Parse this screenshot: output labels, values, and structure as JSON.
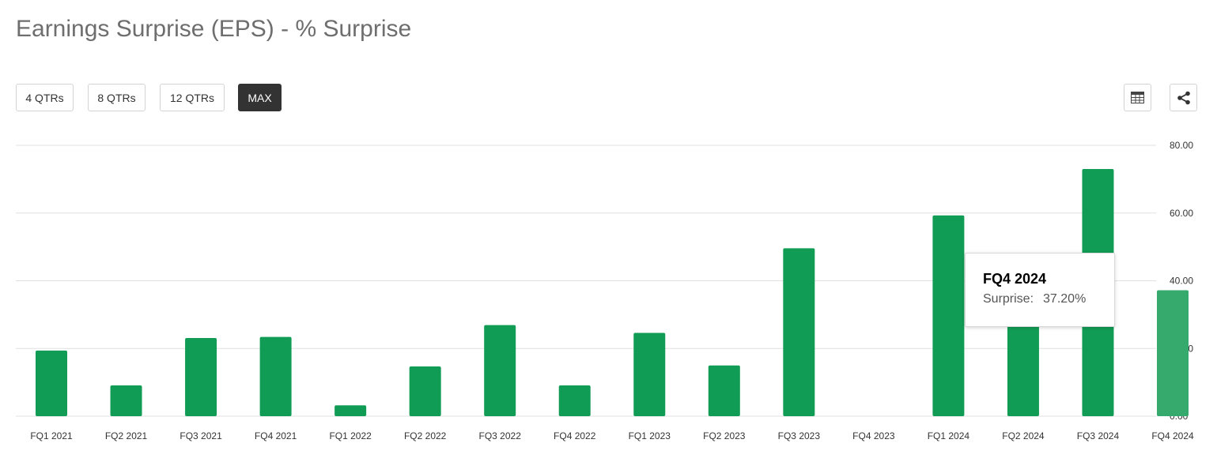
{
  "header": {
    "title": "Earnings Surprise (EPS) - % Surprise"
  },
  "range_buttons": [
    {
      "label": "4 QTRs",
      "active": false
    },
    {
      "label": "8 QTRs",
      "active": false
    },
    {
      "label": "12 QTRs",
      "active": false
    },
    {
      "label": "MAX",
      "active": true
    }
  ],
  "toolbar": {
    "table_icon": "table-icon",
    "share_icon": "share-icon"
  },
  "colors": {
    "bar": "#119c55",
    "bar_hover": "#36a96c",
    "grid": "#e0e0e0",
    "active_button": "#333333"
  },
  "chart_data": {
    "type": "bar",
    "categories": [
      "FQ1 2021",
      "FQ2 2021",
      "FQ3 2021",
      "FQ4 2021",
      "FQ1 2022",
      "FQ2 2022",
      "FQ3 2022",
      "FQ4 2022",
      "FQ1 2023",
      "FQ2 2023",
      "FQ3 2023",
      "FQ4 2023",
      "FQ1 2024",
      "FQ2 2024",
      "FQ3 2024",
      "FQ4 2024"
    ],
    "values": [
      19.4,
      9.1,
      23.1,
      23.4,
      3.2,
      14.7,
      26.9,
      9.1,
      24.6,
      15.0,
      49.6,
      0,
      59.3,
      29.3,
      73.0,
      37.2
    ],
    "ylim": [
      0,
      80
    ],
    "yticks": [
      "0.00",
      "20.00",
      "40.00",
      "60.00",
      "80.00"
    ],
    "yaxis_position": "right",
    "grid": true,
    "highlighted": "FQ4 2024"
  },
  "tooltip": {
    "title": "FQ4 2024",
    "label": "Surprise:",
    "value": "37.20%"
  }
}
